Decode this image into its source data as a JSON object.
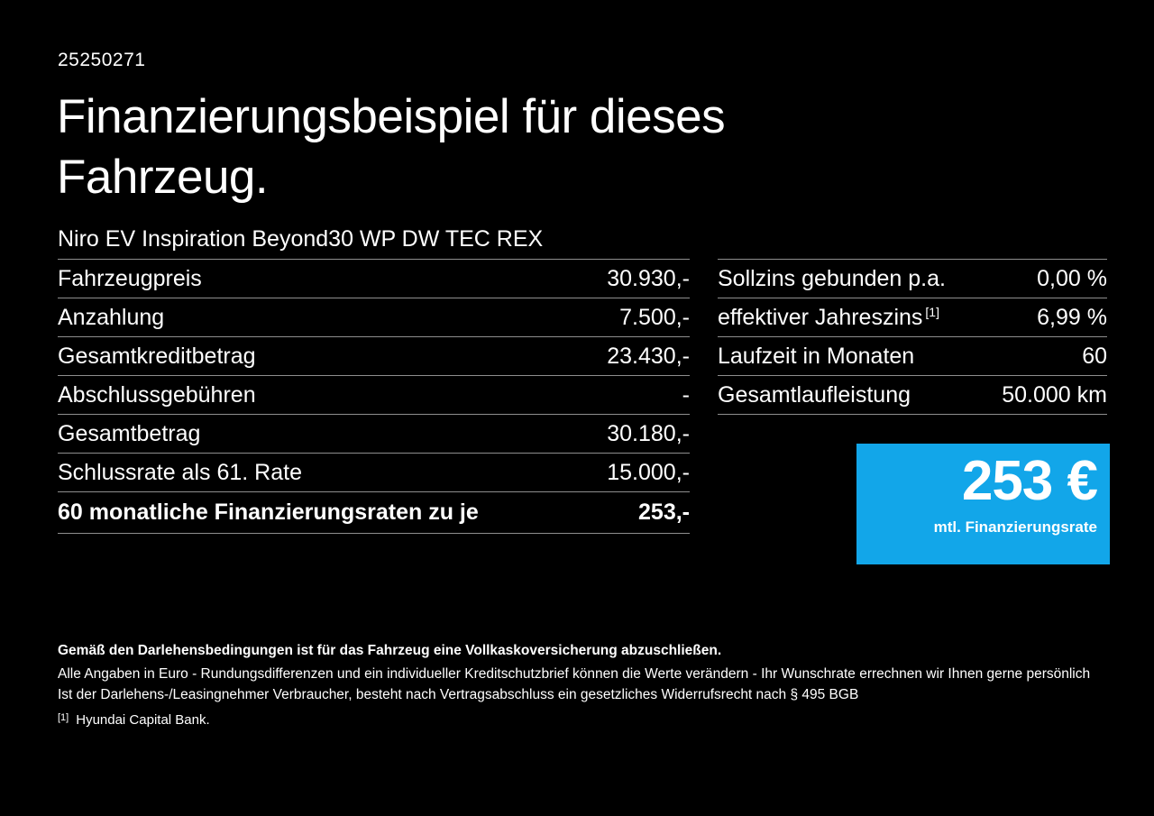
{
  "page": {
    "id_number": "25250271",
    "title_line1": "Finanzierungsbeispiel für dieses",
    "title_line2": "Fahrzeug.",
    "vehicle_name": "Niro EV Inspiration Beyond30 WP DW TEC REX",
    "background_color": "#000000",
    "text_color": "#ffffff"
  },
  "finance_table": {
    "rows": [
      {
        "label": "Fahrzeugpreis",
        "value": "30.930,-",
        "bold": false
      },
      {
        "label": "Anzahlung",
        "value": "7.500,-",
        "bold": false
      },
      {
        "label": "Gesamtkreditbetrag",
        "value": "23.430,-",
        "bold": false
      },
      {
        "label": "Abschlussgebühren",
        "value": "-",
        "bold": false
      },
      {
        "label": "Gesamtbetrag",
        "value": "30.180,-",
        "bold": false
      },
      {
        "label": "Schlussrate als 61. Rate",
        "value": "15.000,-",
        "bold": false
      },
      {
        "label": "60 monatliche Finanzierungsraten zu je",
        "value": "253,-",
        "bold": true
      }
    ]
  },
  "conditions_table": {
    "rows": [
      {
        "label": "Sollzins gebunden p.a.",
        "value": "0,00 %"
      },
      {
        "label": "effektiver Jahreszins",
        "label_sup": "[1]",
        "value": "6,99 %"
      },
      {
        "label": "Laufzeit in Monaten",
        "value": "60"
      },
      {
        "label": "Gesamtlaufleistung",
        "value": "50.000 km"
      }
    ]
  },
  "rate_box": {
    "amount": "253 €",
    "caption": "mtl. Finanzierungsrate",
    "background": "#12a6e9"
  },
  "footer": {
    "bold_note": "Gemäß den Darlehensbedingungen ist für das Fahrzeug eine Vollkaskoversicherung abzuschließen.",
    "note1": "Alle Angaben in Euro - Rundungsdifferenzen und ein individueller Kreditschutzbrief können die Werte verändern - Ihr Wunschrate errechnen wir Ihnen gerne persönlich",
    "note2": "Ist der Darlehens-/Leasingnehmer Verbraucher, besteht nach Vertragsabschluss ein gesetzliches Widerrufsrecht nach § 495 BGB",
    "footnote_marker": "[1]",
    "footnote_text": "Hyundai Capital Bank."
  }
}
